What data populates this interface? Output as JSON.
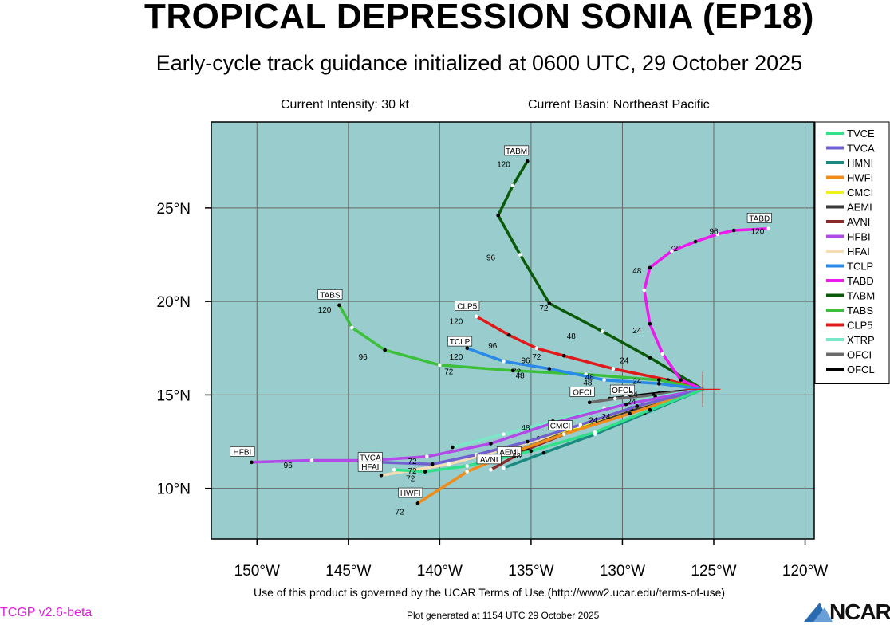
{
  "header": {
    "title": "TROPICAL DEPRESSION SONIA (EP18)",
    "subtitle": "Early-cycle track guidance initialized at 0600 UTC, 29 October 2025",
    "intensity": "Current Intensity: 30 kt",
    "basin": "Current Basin: Northeast Pacific"
  },
  "footer": {
    "terms": "Use of this product is governed by the UCAR Terms of Use (http://www2.ucar.edu/terms-of-use)",
    "version": "TCGP v2.6-beta",
    "generated": "Plot generated at 1154 UTC   29 October 2025",
    "logo": "NCAR"
  },
  "colors": {
    "ocean": "#99cccc",
    "grid": "#666666",
    "tvce": "#33e08a",
    "tvca": "#7060d0",
    "hmni": "#1a8a80",
    "hwfi": "#f08c1a",
    "cmci": "#f0f01a",
    "aemi": "#3a3a3a",
    "avni": "#8c2a2a",
    "hfbi": "#b24ae8",
    "hfai": "#f5deb3",
    "tclp": "#2a8ae8",
    "tabd": "#ec1aec",
    "tabm": "#0a5a0a",
    "tabs": "#3cc03c",
    "clp5": "#e01a1a",
    "xtrp": "#7ae8c8",
    "ofci": "#6a6a6a",
    "ofcl": "#000000"
  },
  "chart_data": {
    "type": "map",
    "xlim": [
      -152.5,
      -119.5
    ],
    "ylim": [
      7.3,
      29.6
    ],
    "x_ticks": [
      -150,
      -145,
      -140,
      -135,
      -130,
      -125,
      -120
    ],
    "x_tick_labels": [
      "150°W",
      "145°W",
      "140°W",
      "135°W",
      "130°W",
      "125°W",
      "120°W"
    ],
    "y_ticks": [
      10,
      15,
      20,
      25
    ],
    "y_tick_labels": [
      "10°N",
      "15°N",
      "20°N",
      "25°N"
    ],
    "grid": true,
    "legend_position": "right",
    "storm_position": {
      "lon": -125.6,
      "lat": 15.3
    },
    "tracks": [
      {
        "name": "TVCE",
        "color_key": "tvce",
        "points": [
          [
            -125.6,
            15.3
          ],
          [
            -128.5,
            14.2
          ],
          [
            -131.5,
            13.0
          ],
          [
            -135,
            12.0
          ],
          [
            -138.5,
            11.2
          ],
          [
            -140.8,
            10.9
          ],
          [
            -142.5,
            11.0
          ]
        ]
      },
      {
        "name": "TVCA",
        "color_key": "tvca",
        "points": [
          [
            -125.6,
            15.3
          ],
          [
            -129.2,
            14.4
          ],
          [
            -132.3,
            13.4
          ],
          [
            -135.2,
            12.5
          ],
          [
            -138,
            11.8
          ],
          [
            -140.4,
            11.3
          ],
          [
            -143.3,
            11.4
          ]
        ],
        "label": {
          "text": "TVCA",
          "lon": -143.8,
          "lat": 11.5
        }
      },
      {
        "name": "HMNI",
        "color_key": "hmni",
        "points": [
          [
            -125.6,
            15.3
          ],
          [
            -128.8,
            14.0
          ],
          [
            -131.5,
            12.9
          ],
          [
            -134.3,
            11.9
          ],
          [
            -136.5,
            11.1
          ]
        ]
      },
      {
        "name": "HWFI",
        "color_key": "hwfi",
        "points": [
          [
            -125.6,
            15.3
          ],
          [
            -129.6,
            14.0
          ],
          [
            -133.2,
            12.9
          ],
          [
            -135.8,
            12.0
          ],
          [
            -138.5,
            10.9
          ],
          [
            -141.2,
            9.2
          ]
        ],
        "label": {
          "text": "HWFI",
          "lon": -141.6,
          "lat": 9.6
        },
        "tau_labels": [
          {
            "text": "72",
            "lon": -142.2,
            "lat": 8.6
          }
        ]
      },
      {
        "name": "CMCI",
        "color_key": "cmci",
        "points": [
          [
            -125.6,
            15.3
          ],
          [
            -129.5,
            14.3
          ],
          [
            -132.4,
            13.3
          ],
          [
            -134.6,
            12.7
          ]
        ],
        "label": {
          "text": "CMCI",
          "lon": -133.4,
          "lat": 13.2
        }
      },
      {
        "name": "AEMI",
        "color_key": "aemi",
        "points": [
          [
            -125.6,
            15.3
          ],
          [
            -129.5,
            14.2
          ],
          [
            -132.8,
            13.1
          ],
          [
            -135.5,
            12.1
          ]
        ],
        "label": {
          "text": "AEMI",
          "lon": -136.2,
          "lat": 11.8
        }
      },
      {
        "name": "AVNI",
        "color_key": "avni",
        "points": [
          [
            -125.6,
            15.3
          ],
          [
            -129.3,
            14.3
          ],
          [
            -132.4,
            13.2
          ],
          [
            -135.2,
            12.1
          ],
          [
            -137.2,
            11.0
          ]
        ],
        "label": {
          "text": "AVNI",
          "lon": -137.3,
          "lat": 11.4
        },
        "tau_labels": [
          {
            "text": "48",
            "lon": -135.8,
            "lat": 11.6
          }
        ]
      },
      {
        "name": "HFBI",
        "color_key": "hfbi",
        "points": [
          [
            -125.6,
            15.3
          ],
          [
            -129.8,
            14.5
          ],
          [
            -133.8,
            13.5
          ],
          [
            -137.2,
            12.4
          ],
          [
            -140.7,
            11.7
          ],
          [
            -143.8,
            11.5
          ],
          [
            -147,
            11.5
          ],
          [
            -150.3,
            11.4
          ]
        ],
        "label": {
          "text": "HFBI",
          "lon": -150.8,
          "lat": 11.8
        },
        "tau_labels": [
          {
            "text": "96",
            "lon": -148.3,
            "lat": 11.1
          }
        ]
      },
      {
        "name": "HFAI",
        "color_key": "hfai",
        "points": [
          [
            -125.6,
            15.3
          ],
          [
            -129.4,
            14.3
          ],
          [
            -132.7,
            13.1
          ],
          [
            -136.1,
            12.2
          ],
          [
            -139.5,
            11.3
          ],
          [
            -143.2,
            10.7
          ]
        ],
        "label": {
          "text": "HFAI",
          "lon": -143.8,
          "lat": 11.0
        },
        "tau_labels": [
          {
            "text": "72",
            "lon": -141.5,
            "lat": 11.3
          },
          {
            "text": "72",
            "lon": -141.5,
            "lat": 10.8
          },
          {
            "text": "72",
            "lon": -141.6,
            "lat": 10.4
          }
        ]
      },
      {
        "name": "TCLP",
        "color_key": "tclp",
        "points": [
          [
            -125.6,
            15.3
          ],
          [
            -128,
            15.6
          ],
          [
            -131,
            15.8
          ],
          [
            -134,
            16.4
          ],
          [
            -136.5,
            16.8
          ],
          [
            -138.5,
            17.5
          ]
        ],
        "label": {
          "text": "TCLP",
          "lon": -138.9,
          "lat": 17.7
        },
        "tau_labels": [
          {
            "text": "120",
            "lon": -139.1,
            "lat": 16.9
          }
        ]
      },
      {
        "name": "TABD",
        "color_key": "tabd",
        "points": [
          [
            -125.6,
            15.3
          ],
          [
            -126.8,
            15.8
          ],
          [
            -127.8,
            17.2
          ],
          [
            -128.5,
            18.8
          ],
          [
            -128.8,
            20.6
          ],
          [
            -128.5,
            21.8
          ],
          [
            -127.3,
            22.7
          ],
          [
            -126,
            23.2
          ],
          [
            -124.8,
            23.6
          ],
          [
            -123.9,
            23.8
          ],
          [
            -122,
            23.9
          ]
        ],
        "label": {
          "text": "TABD",
          "lon": -122.5,
          "lat": 24.3
        },
        "tau_labels": [
          {
            "text": "120",
            "lon": -122.6,
            "lat": 23.6
          },
          {
            "text": "96",
            "lon": -125,
            "lat": 23.6
          },
          {
            "text": "72",
            "lon": -127.2,
            "lat": 22.7
          },
          {
            "text": "48",
            "lon": -129.2,
            "lat": 21.5
          },
          {
            "text": "24",
            "lon": -129.2,
            "lat": 18.3
          }
        ]
      },
      {
        "name": "TABM",
        "color_key": "tabm",
        "points": [
          [
            -125.6,
            15.3
          ],
          [
            -128.5,
            17
          ],
          [
            -131.1,
            18.4
          ],
          [
            -134,
            19.9
          ],
          [
            -135.6,
            22.5
          ],
          [
            -136.8,
            24.6
          ],
          [
            -136,
            26.2
          ],
          [
            -135.2,
            27.5
          ]
        ],
        "label": {
          "text": "TABM",
          "lon": -135.8,
          "lat": 27.9
        },
        "tau_labels": [
          {
            "text": "120",
            "lon": -136.5,
            "lat": 27.2
          },
          {
            "text": "96",
            "lon": -137.2,
            "lat": 22.2
          },
          {
            "text": "72",
            "lon": -134.3,
            "lat": 19.5
          },
          {
            "text": "48",
            "lon": -132.8,
            "lat": 18.0
          },
          {
            "text": "24",
            "lon": -129.9,
            "lat": 16.7
          }
        ]
      },
      {
        "name": "TABS",
        "color_key": "tabs",
        "points": [
          [
            -125.6,
            15.3
          ],
          [
            -128,
            15.8
          ],
          [
            -132,
            16.1
          ],
          [
            -136,
            16.3
          ],
          [
            -140,
            16.6
          ],
          [
            -143,
            17.4
          ],
          [
            -144.8,
            18.6
          ],
          [
            -145.5,
            19.8
          ]
        ],
        "label": {
          "text": "TABS",
          "lon": -146,
          "lat": 20.2
        },
        "tau_labels": [
          {
            "text": "120",
            "lon": -146.3,
            "lat": 19.4
          },
          {
            "text": "96",
            "lon": -144.2,
            "lat": 16.9
          },
          {
            "text": "72",
            "lon": -139.5,
            "lat": 16.1
          }
        ]
      },
      {
        "name": "CLP5",
        "color_key": "clp5",
        "points": [
          [
            -125.6,
            15.3
          ],
          [
            -127.5,
            15.8
          ],
          [
            -130.5,
            16.4
          ],
          [
            -133.2,
            17.1
          ],
          [
            -134.7,
            17.5
          ],
          [
            -136.2,
            18.2
          ],
          [
            -138,
            19.2
          ]
        ],
        "label": {
          "text": "CLP5",
          "lon": -138.5,
          "lat": 19.6
        },
        "tau_labels": [
          {
            "text": "120",
            "lon": -139.1,
            "lat": 18.8
          },
          {
            "text": "96",
            "lon": -137.1,
            "lat": 17.5
          },
          {
            "text": "72",
            "lon": -134.7,
            "lat": 16.9
          },
          {
            "text": "48",
            "lon": -131.9,
            "lat": 15.5
          },
          {
            "text": "24",
            "lon": -129.2,
            "lat": 15.6
          }
        ]
      },
      {
        "name": "XTRP",
        "color_key": "xtrp",
        "points": [
          [
            -125.6,
            15.3
          ],
          [
            -128.2,
            14.9
          ],
          [
            -131,
            14.3
          ],
          [
            -133.8,
            13.6
          ],
          [
            -136.5,
            12.9
          ],
          [
            -139.3,
            12.2
          ]
        ]
      },
      {
        "name": "OFCI",
        "color_key": "ofci",
        "points": [
          [
            -125.6,
            15.3
          ],
          [
            -128.3,
            15.0
          ],
          [
            -130.4,
            14.8
          ],
          [
            -131.8,
            14.6
          ]
        ],
        "label": {
          "text": "OFCI",
          "lon": -132.2,
          "lat": 15.0
        }
      },
      {
        "name": "OFCL",
        "color_key": "ofcl",
        "points": [
          [
            -125.6,
            15.3
          ],
          [
            -128,
            15.1
          ],
          [
            -129.8,
            14.9
          ],
          [
            -130.7,
            14.8
          ]
        ],
        "label": {
          "text": "OFCL",
          "lon": -130.0,
          "lat": 15.1
        }
      },
      {
        "name": "EXTRA-TAU",
        "color_key": "ofcl",
        "points": [],
        "tau_labels": [
          {
            "text": "24",
            "lon": -130.9,
            "lat": 13.7
          },
          {
            "text": "24",
            "lon": -131.6,
            "lat": 13.5
          },
          {
            "text": "48",
            "lon": -135.3,
            "lat": 13.1
          },
          {
            "text": "72",
            "lon": -135.8,
            "lat": 16.1
          },
          {
            "text": "48",
            "lon": -135.6,
            "lat": 15.9
          },
          {
            "text": "96",
            "lon": -135.3,
            "lat": 16.7
          },
          {
            "text": "48",
            "lon": -131.8,
            "lat": 15.8
          },
          {
            "text": "24",
            "lon": -129.5,
            "lat": 14.5
          },
          {
            "text": "24",
            "lon": -129.4,
            "lat": 14.9
          }
        ]
      }
    ],
    "legend": [
      "TVCE",
      "TVCA",
      "HMNI",
      "HWFI",
      "CMCI",
      "AEMI",
      "AVNI",
      "HFBI",
      "HFAI",
      "TCLP",
      "TABD",
      "TABM",
      "TABS",
      "CLP5",
      "XTRP",
      "OFCI",
      "OFCL"
    ]
  }
}
